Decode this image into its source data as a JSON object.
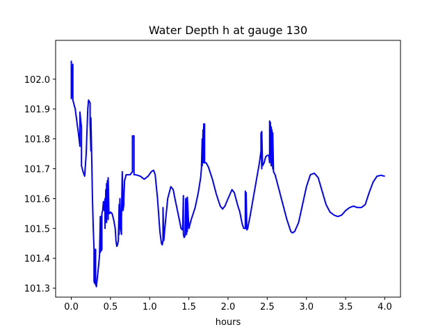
{
  "chart_data": {
    "type": "line",
    "title": "Water Depth h at gauge 130",
    "xlabel": "hours",
    "ylabel": "",
    "xlim": [
      -0.2,
      4.2
    ],
    "ylim": [
      101.27,
      102.13
    ],
    "x_ticks": [
      "0.0",
      "0.5",
      "1.0",
      "1.5",
      "2.0",
      "2.5",
      "3.0",
      "3.5",
      "4.0"
    ],
    "x_tick_values": [
      0.0,
      0.5,
      1.0,
      1.5,
      2.0,
      2.5,
      3.0,
      3.5,
      4.0
    ],
    "y_ticks": [
      "101.3",
      "101.4",
      "101.5",
      "101.6",
      "101.7",
      "101.8",
      "101.9",
      "102.0"
    ],
    "y_tick_values": [
      101.3,
      101.4,
      101.5,
      101.6,
      101.7,
      101.8,
      101.9,
      102.0
    ],
    "grid": false,
    "legend": "none",
    "series": [
      {
        "color": "#0000ff",
        "x": [
          0.0,
          0.0,
          0.0,
          0.02,
          0.02,
          0.03,
          0.05,
          0.07,
          0.09,
          0.11,
          0.11,
          0.12,
          0.13,
          0.13,
          0.15,
          0.17,
          0.19,
          0.21,
          0.22,
          0.24,
          0.24,
          0.25,
          0.25,
          0.26,
          0.27,
          0.28,
          0.29,
          0.29,
          0.3,
          0.3,
          0.31,
          0.31,
          0.32,
          0.33,
          0.35,
          0.36,
          0.37,
          0.37,
          0.38,
          0.38,
          0.39,
          0.39,
          0.4,
          0.41,
          0.42,
          0.43,
          0.43,
          0.44,
          0.45,
          0.45,
          0.46,
          0.46,
          0.47,
          0.47,
          0.48,
          0.48,
          0.49,
          0.49,
          0.5,
          0.52,
          0.54,
          0.56,
          0.57,
          0.58,
          0.59,
          0.6,
          0.61,
          0.61,
          0.62,
          0.63,
          0.64,
          0.64,
          0.65,
          0.66,
          0.67,
          0.67,
          0.68,
          0.7,
          0.72,
          0.75,
          0.78,
          0.78,
          0.8,
          0.8,
          0.82,
          0.88,
          0.93,
          0.98,
          1.02,
          1.05,
          1.07,
          1.1,
          1.13,
          1.15,
          1.16,
          1.17,
          1.17,
          1.18,
          1.2,
          1.23,
          1.27,
          1.3,
          1.33,
          1.37,
          1.4,
          1.42,
          1.43,
          1.43,
          1.44,
          1.45,
          1.46,
          1.47,
          1.47,
          1.48,
          1.48,
          1.5,
          1.53,
          1.58,
          1.62,
          1.65,
          1.66,
          1.67,
          1.67,
          1.68,
          1.68,
          1.69,
          1.69,
          1.7,
          1.7,
          1.71,
          1.72,
          1.75,
          1.8,
          1.85,
          1.9,
          1.93,
          1.96,
          2.0,
          2.05,
          2.08,
          2.12,
          2.15,
          2.18,
          2.2,
          2.22,
          2.22,
          2.23,
          2.23,
          2.24,
          2.25,
          2.28,
          2.32,
          2.36,
          2.4,
          2.42,
          2.42,
          2.43,
          2.43,
          2.44,
          2.46,
          2.48,
          2.5,
          2.52,
          2.53,
          2.53,
          2.54,
          2.54,
          2.55,
          2.55,
          2.56,
          2.56,
          2.57,
          2.57,
          2.58,
          2.6,
          2.65,
          2.7,
          2.75,
          2.8,
          2.82,
          2.85,
          2.9,
          2.95,
          3.0,
          3.05,
          3.1,
          3.15,
          3.2,
          3.25,
          3.3,
          3.35,
          3.4,
          3.45,
          3.5,
          3.55,
          3.6,
          3.65,
          3.7,
          3.75,
          3.8,
          3.85,
          3.9,
          3.95,
          4.0
        ],
        "y": [
          101.935,
          102.06,
          101.935,
          102.05,
          101.93,
          101.92,
          101.9,
          101.86,
          101.82,
          101.775,
          101.89,
          101.86,
          101.84,
          101.71,
          101.69,
          101.675,
          101.75,
          101.9,
          101.93,
          101.92,
          101.85,
          101.76,
          101.87,
          101.74,
          101.6,
          101.5,
          101.43,
          101.32,
          101.43,
          101.315,
          101.43,
          101.315,
          101.305,
          101.33,
          101.38,
          101.41,
          101.54,
          101.42,
          101.54,
          101.425,
          101.43,
          101.55,
          101.56,
          101.59,
          101.56,
          101.6,
          101.5,
          101.63,
          101.52,
          101.65,
          101.55,
          101.66,
          101.53,
          101.67,
          101.55,
          101.555,
          101.55,
          101.55,
          101.555,
          101.55,
          101.53,
          101.5,
          101.46,
          101.44,
          101.445,
          101.46,
          101.58,
          101.48,
          101.6,
          101.5,
          101.48,
          101.53,
          101.69,
          101.56,
          101.58,
          101.6,
          101.66,
          101.68,
          101.68,
          101.68,
          101.69,
          101.81,
          101.81,
          101.68,
          101.68,
          101.675,
          101.665,
          101.675,
          101.69,
          101.695,
          101.68,
          101.6,
          101.49,
          101.45,
          101.445,
          101.46,
          101.57,
          101.46,
          101.52,
          101.6,
          101.64,
          101.63,
          101.59,
          101.54,
          101.5,
          101.495,
          101.61,
          101.48,
          101.47,
          101.475,
          101.6,
          101.48,
          101.6,
          101.49,
          101.605,
          101.5,
          101.53,
          101.57,
          101.62,
          101.67,
          101.7,
          101.8,
          101.71,
          101.83,
          101.72,
          101.85,
          101.72,
          101.85,
          101.72,
          101.72,
          101.72,
          101.705,
          101.665,
          101.615,
          101.575,
          101.565,
          101.575,
          101.6,
          101.63,
          101.62,
          101.58,
          101.555,
          101.515,
          101.5,
          101.5,
          101.625,
          101.5,
          101.62,
          101.495,
          101.5,
          101.54,
          101.6,
          101.66,
          101.72,
          101.76,
          101.82,
          101.7,
          101.825,
          101.71,
          101.72,
          101.74,
          101.745,
          101.745,
          101.72,
          101.86,
          101.74,
          101.855,
          101.71,
          101.84,
          101.72,
          101.83,
          101.7,
          101.82,
          101.69,
          101.68,
          101.63,
          101.58,
          101.53,
          101.49,
          101.485,
          101.49,
          101.52,
          101.58,
          101.64,
          101.68,
          101.685,
          101.67,
          101.625,
          101.58,
          101.555,
          101.545,
          101.54,
          101.545,
          101.56,
          101.57,
          101.575,
          101.57,
          101.57,
          101.58,
          101.62,
          101.655,
          101.675,
          101.678,
          101.675
        ]
      }
    ]
  }
}
